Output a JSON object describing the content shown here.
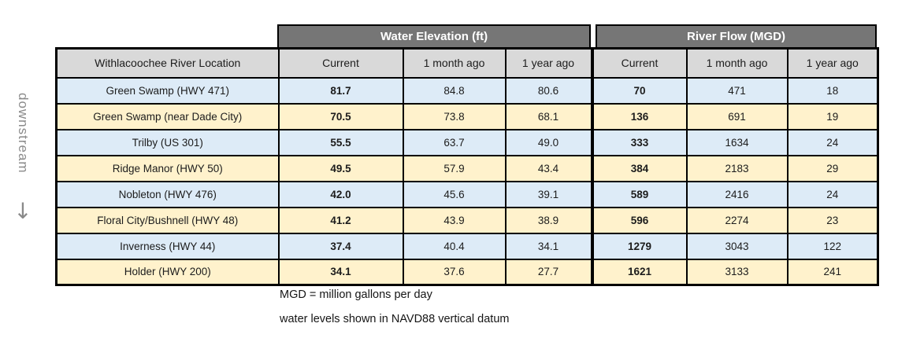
{
  "chart_data": {
    "type": "table",
    "location_header": "Withlacoochee River Location",
    "column_groups": [
      {
        "label": "Water Elevation (ft)",
        "columns": [
          "Current",
          "1 month ago",
          "1 year ago"
        ]
      },
      {
        "label": "River Flow (MGD)",
        "columns": [
          "Current",
          "1 month ago",
          "1 year ago"
        ]
      }
    ],
    "sub_headers": [
      "Current",
      "1 month ago",
      "1 year ago",
      "Current",
      "1 month ago",
      "1 year ago"
    ],
    "rows": [
      {
        "location": "Green Swamp (HWY 471)",
        "water_elevation": [
          "81.7",
          "84.8",
          "80.6"
        ],
        "river_flow": [
          "70",
          "471",
          "18"
        ]
      },
      {
        "location": "Green Swamp (near Dade City)",
        "water_elevation": [
          "70.5",
          "73.8",
          "68.1"
        ],
        "river_flow": [
          "136",
          "691",
          "19"
        ]
      },
      {
        "location": "Trilby (US 301)",
        "water_elevation": [
          "55.5",
          "63.7",
          "49.0"
        ],
        "river_flow": [
          "333",
          "1634",
          "24"
        ]
      },
      {
        "location": "Ridge Manor (HWY 50)",
        "water_elevation": [
          "49.5",
          "57.9",
          "43.4"
        ],
        "river_flow": [
          "384",
          "2183",
          "29"
        ]
      },
      {
        "location": "Nobleton (HWY 476)",
        "water_elevation": [
          "42.0",
          "45.6",
          "39.1"
        ],
        "river_flow": [
          "589",
          "2416",
          "24"
        ]
      },
      {
        "location": "Floral City/Bushnell (HWY 48)",
        "water_elevation": [
          "41.2",
          "43.9",
          "38.9"
        ],
        "river_flow": [
          "596",
          "2274",
          "23"
        ]
      },
      {
        "location": "Inverness (HWY 44)",
        "water_elevation": [
          "37.4",
          "40.4",
          "34.1"
        ],
        "river_flow": [
          "1279",
          "3043",
          "122"
        ]
      },
      {
        "location": "Holder (HWY 200)",
        "water_elevation": [
          "34.1",
          "37.6",
          "27.7"
        ],
        "river_flow": [
          "1621",
          "3133",
          "241"
        ]
      }
    ]
  },
  "downstream": {
    "label": "downstream",
    "arrow_icon": "↓"
  },
  "footnotes": [
    "MGD = million gallons per day",
    "water levels shown in NAVD88 vertical datum"
  ],
  "colors": {
    "group_band_bg": "#767676",
    "group_band_text": "#ffffff",
    "header_bg": "#d9d9d9",
    "row_blue": "#ddebf7",
    "row_cream": "#fff2cc",
    "border": "#000000",
    "downstream_gray": "#8a8a8a"
  }
}
